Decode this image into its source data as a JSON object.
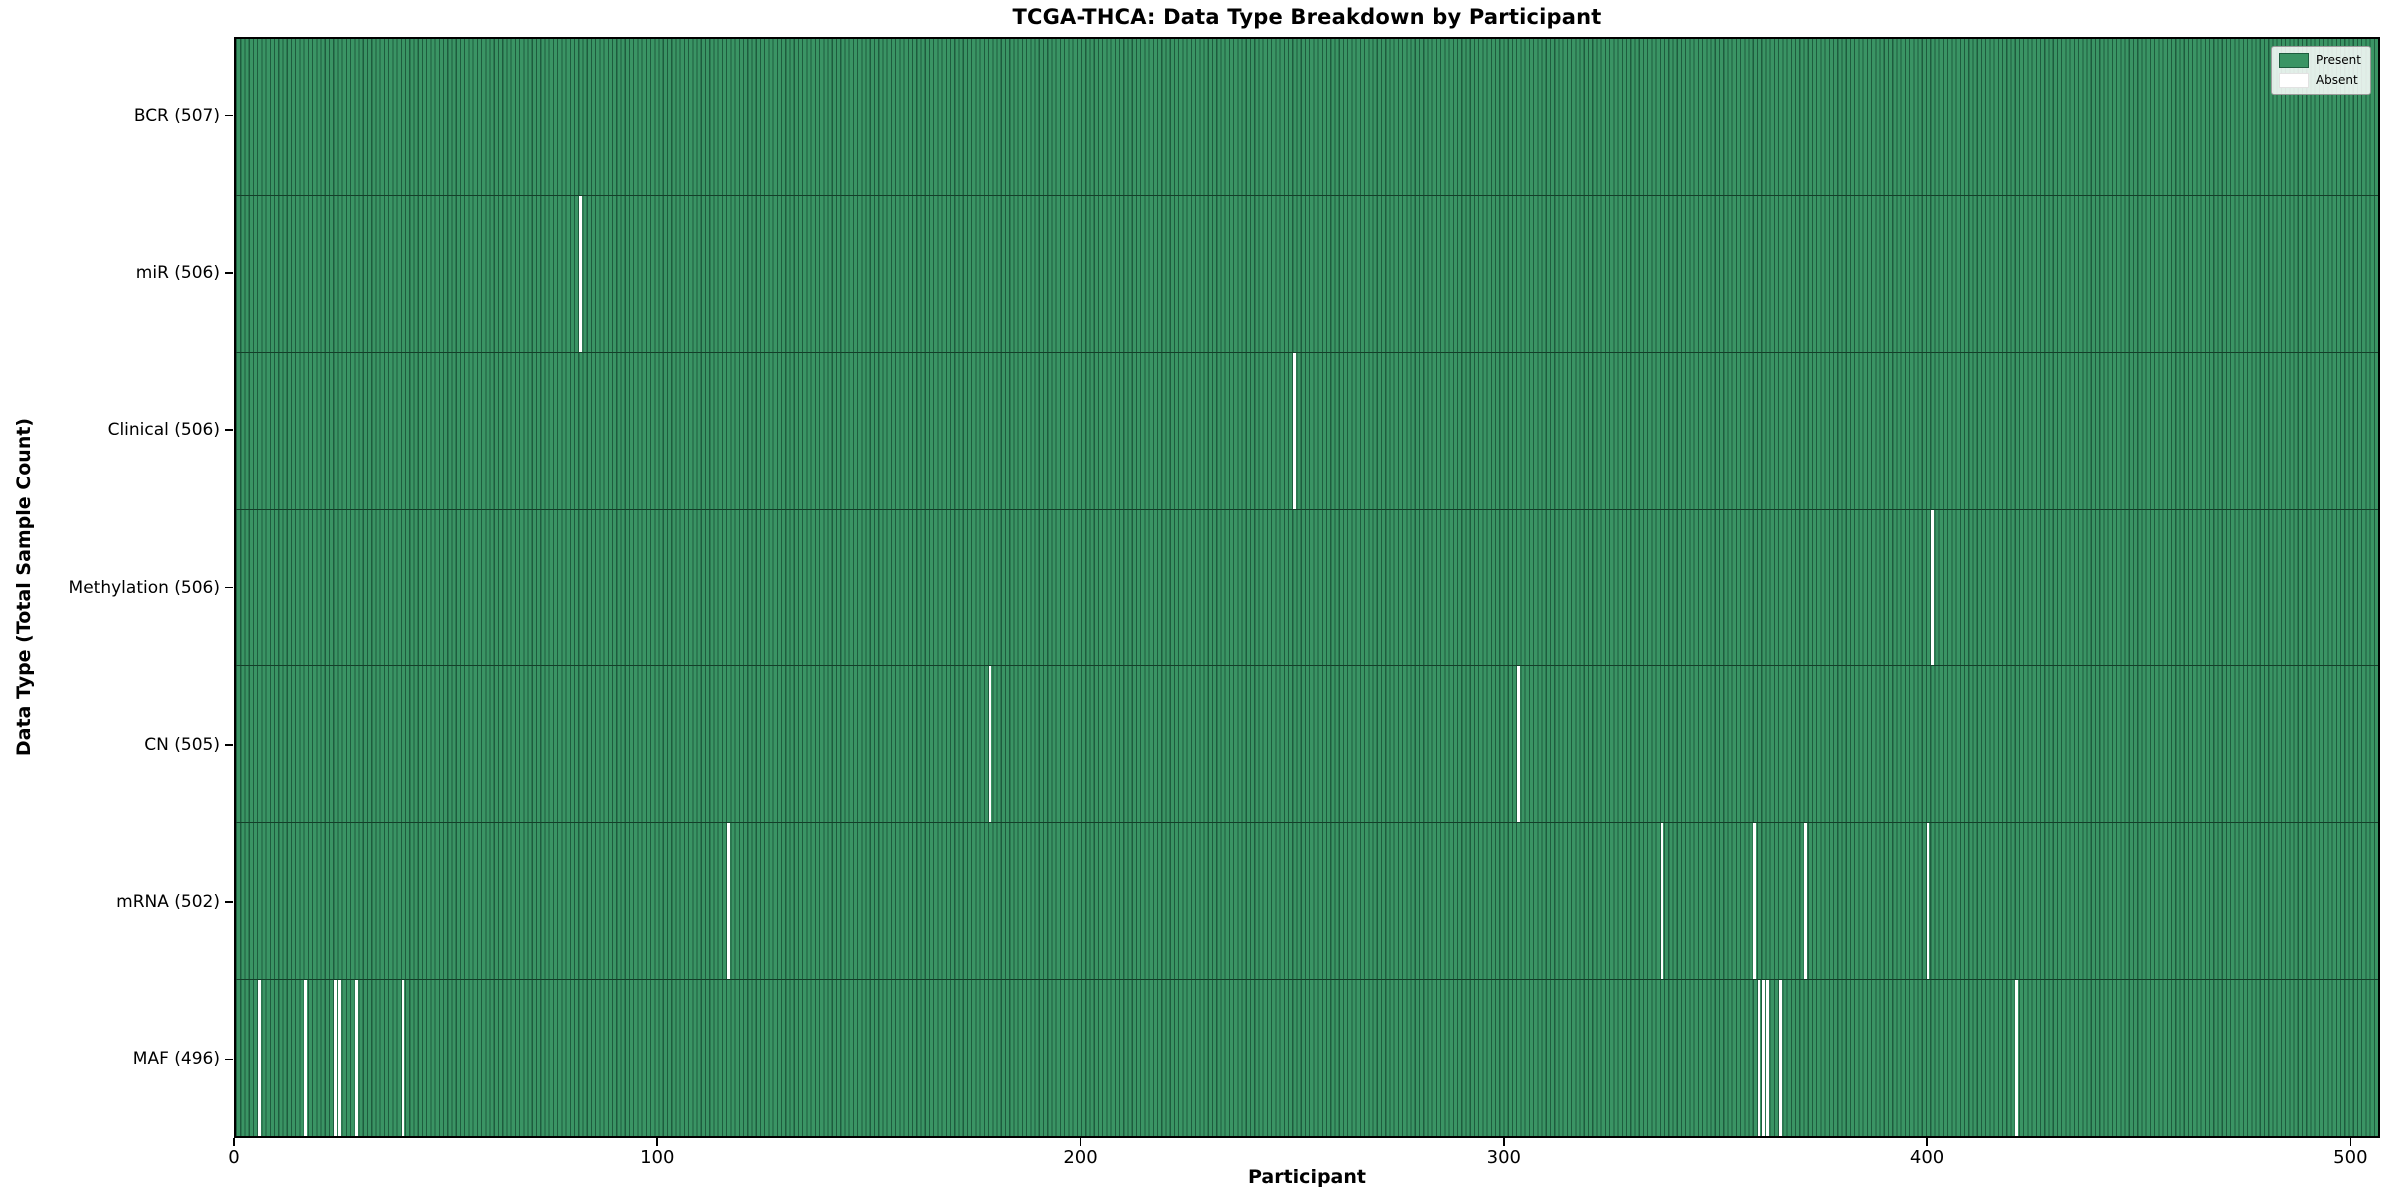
{
  "title": "TCGA-THCA: Data Type Breakdown by Participant",
  "colors": {
    "present_fill": "#3a9464",
    "bar_edge": "#1e5c3e",
    "absent": "#ffffff",
    "row_divider": "#143f29",
    "spine": "#000000",
    "legend_bg": "rgba(255,255,255,0.85)",
    "legend_border": "#9b9b9b"
  },
  "chart_data": {
    "type": "heatmap",
    "title": "TCGA-THCA: Data Type Breakdown by Participant",
    "xlabel": "Participant",
    "ylabel": "Data Type (Total Sample Count)",
    "x_ticks": [
      0,
      100,
      200,
      300,
      400,
      500
    ],
    "xlim": [
      0,
      507
    ],
    "n_participants": 507,
    "grid": false,
    "legend": {
      "position": "upper right",
      "entries": [
        {
          "label": "Present",
          "color": "#3a9464"
        },
        {
          "label": "Absent",
          "color": "#ffffff"
        }
      ]
    },
    "rows": [
      {
        "data_type": "BCR",
        "label": "BCR (507)",
        "present_count": 507,
        "absent_participants": []
      },
      {
        "data_type": "miR",
        "label": "miR (506)",
        "present_count": 506,
        "absent_participants": [
          81
        ]
      },
      {
        "data_type": "Clinical",
        "label": "Clinical (506)",
        "present_count": 506,
        "absent_participants": [
          250
        ]
      },
      {
        "data_type": "Methylation",
        "label": "Methylation (506)",
        "present_count": 506,
        "absent_participants": [
          401
        ]
      },
      {
        "data_type": "CN",
        "label": "CN (505)",
        "present_count": 505,
        "absent_participants": [
          178,
          303
        ]
      },
      {
        "data_type": "mRNA",
        "label": "mRNA (502)",
        "present_count": 502,
        "absent_participants": [
          116,
          337,
          359,
          371,
          400
        ]
      },
      {
        "data_type": "MAF",
        "label": "MAF (496)",
        "present_count": 496,
        "absent_participants": [
          5,
          16,
          23,
          24,
          28,
          39,
          360,
          361,
          362,
          365,
          421
        ]
      }
    ]
  }
}
